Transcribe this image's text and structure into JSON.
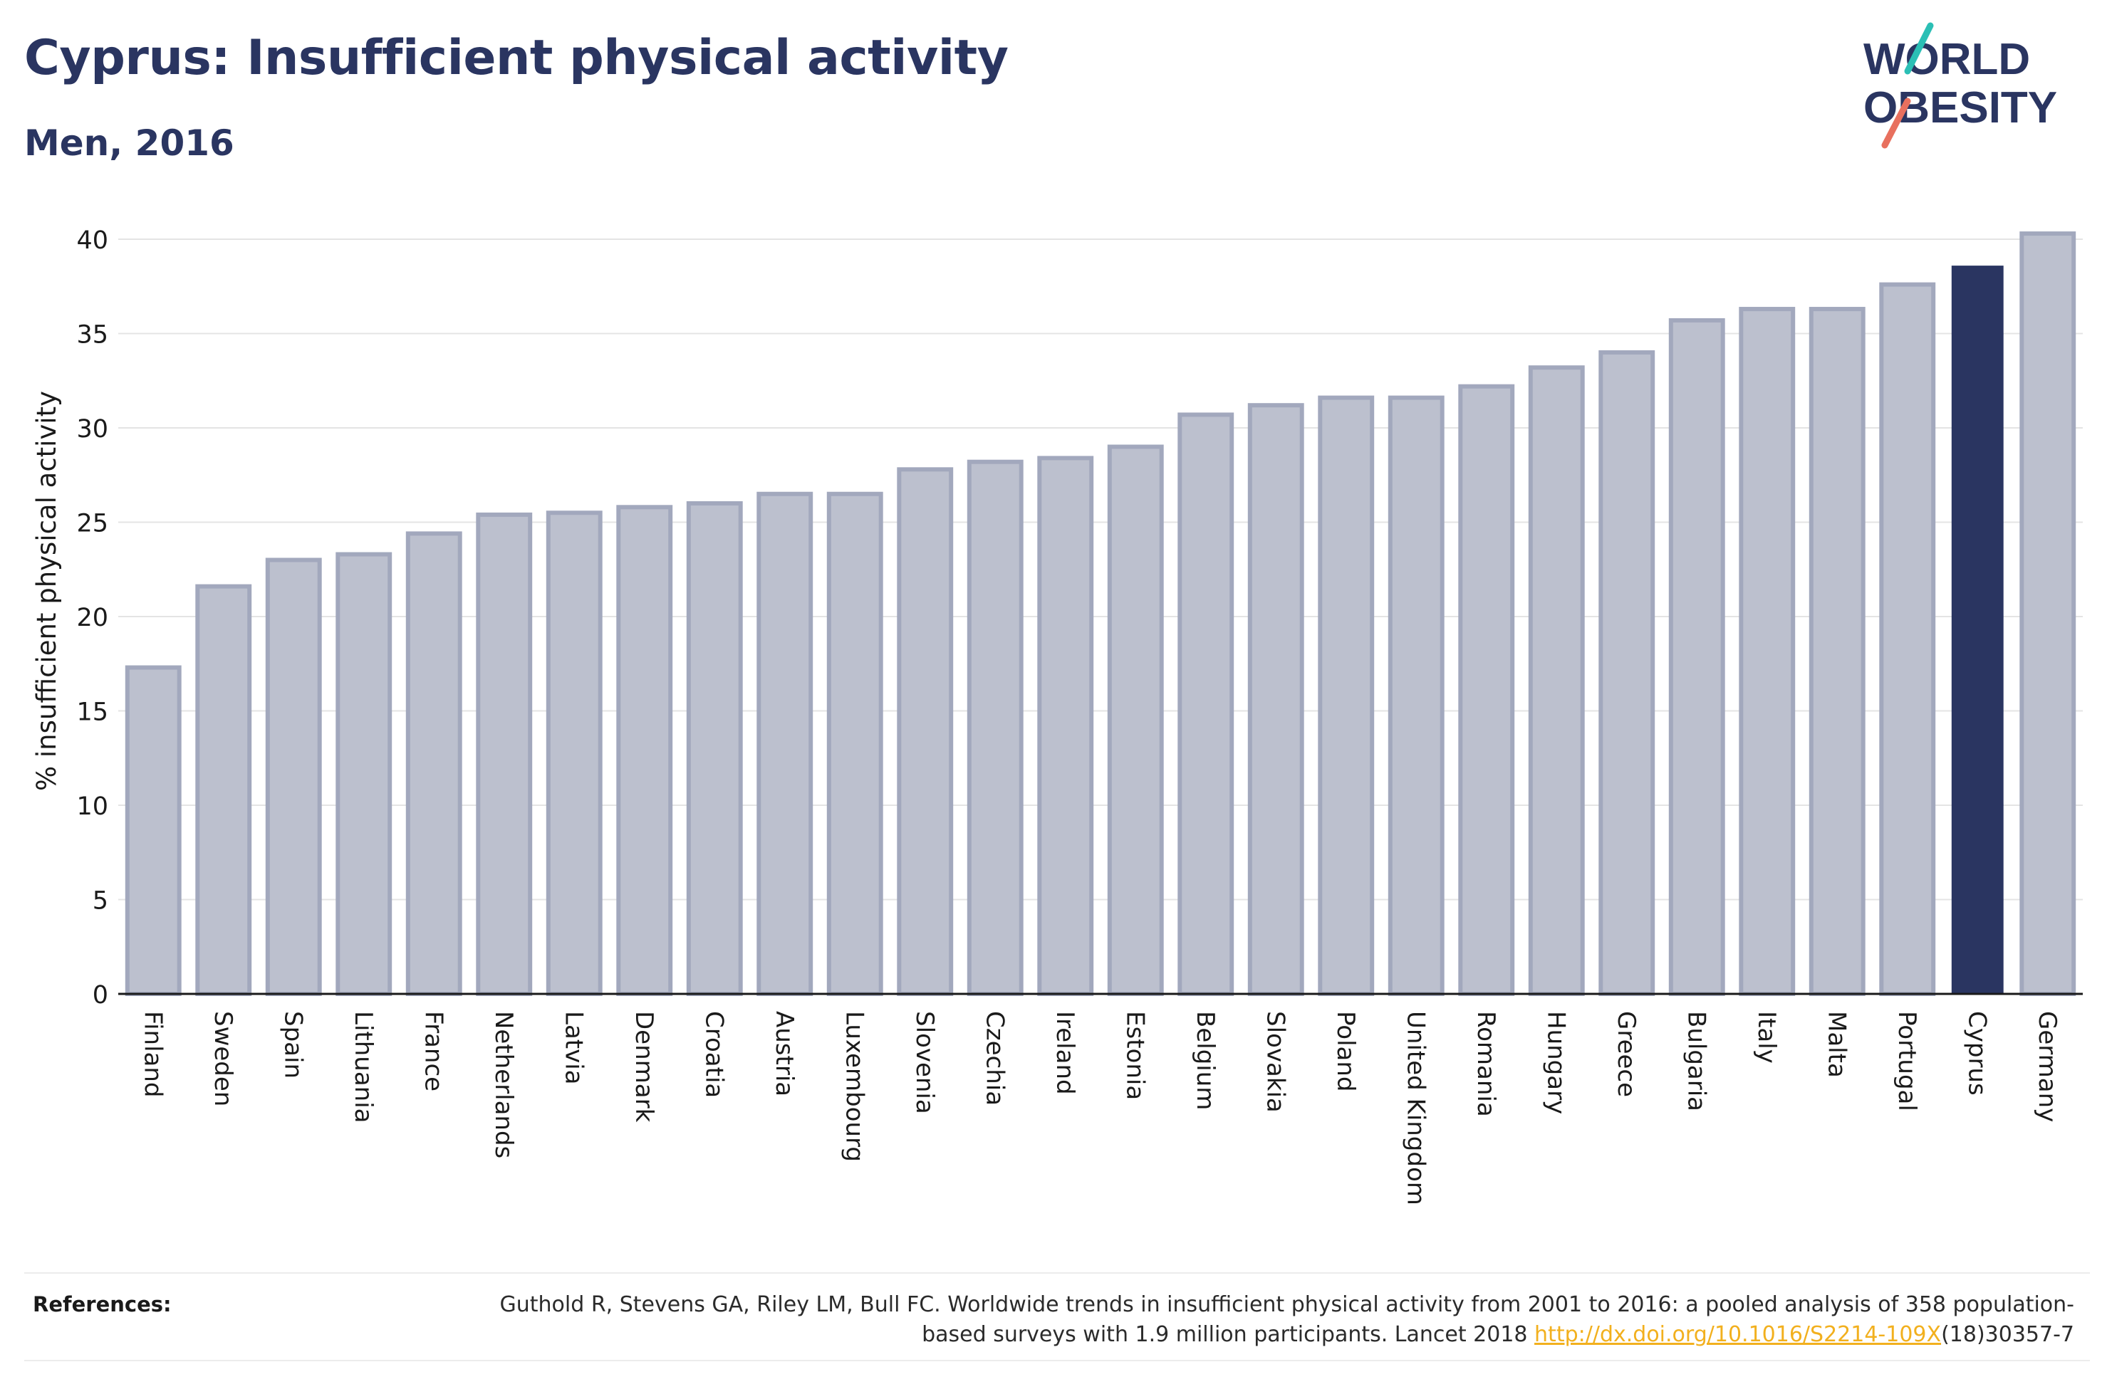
{
  "header": {
    "title": "Cyprus: Insufficient physical activity",
    "subtitle": "Men, 2016"
  },
  "logo": {
    "line1": "WORLD",
    "line2": "OBESITY"
  },
  "colors": {
    "highlight": "#2a3561",
    "bar": "#bcc0ce",
    "bar_border": "#a2a8bd",
    "axis": "#1a1a1a",
    "grid": "#e4e4e4",
    "logo_teal": "#2bbfb5",
    "logo_coral": "#e8705e",
    "link": "#f2b01e"
  },
  "chart_data": {
    "type": "bar",
    "title": "Cyprus: Insufficient physical activity",
    "subtitle": "Men, 2016",
    "ylabel": "% insufficient physical activity",
    "xlabel": "",
    "ylim": [
      0,
      40
    ],
    "yticks": [
      0,
      5,
      10,
      15,
      20,
      25,
      30,
      35,
      40
    ],
    "grid": true,
    "highlight": "Cyprus",
    "categories": [
      "Finland",
      "Sweden",
      "Spain",
      "Lithuania",
      "France",
      "Netherlands",
      "Latvia",
      "Denmark",
      "Croatia",
      "Austria",
      "Luxembourg",
      "Slovenia",
      "Czechia",
      "Ireland",
      "Estonia",
      "Belgium",
      "Slovakia",
      "Poland",
      "United Kingdom",
      "Romania",
      "Hungary",
      "Greece",
      "Bulgaria",
      "Italy",
      "Malta",
      "Portugal",
      "Cyprus",
      "Germany"
    ],
    "values": [
      17.3,
      21.6,
      23.0,
      23.3,
      24.4,
      25.4,
      25.5,
      25.8,
      26.0,
      26.5,
      26.5,
      27.8,
      28.2,
      28.4,
      29.0,
      30.7,
      31.2,
      31.6,
      31.6,
      32.2,
      33.2,
      34.0,
      35.7,
      36.3,
      36.3,
      37.6,
      38.6,
      40.3
    ]
  },
  "references": {
    "label": "References:",
    "text_before": "Guthold R, Stevens GA, Riley LM, Bull FC. Worldwide trends in insufficient physical activity from 2001 to 2016: a pooled analysis of 358 population-based surveys with 1.9 million participants. Lancet 2018 ",
    "link": "http://dx.doi.org/10.1016/S2214-109X",
    "text_after": "(18)30357-7"
  }
}
